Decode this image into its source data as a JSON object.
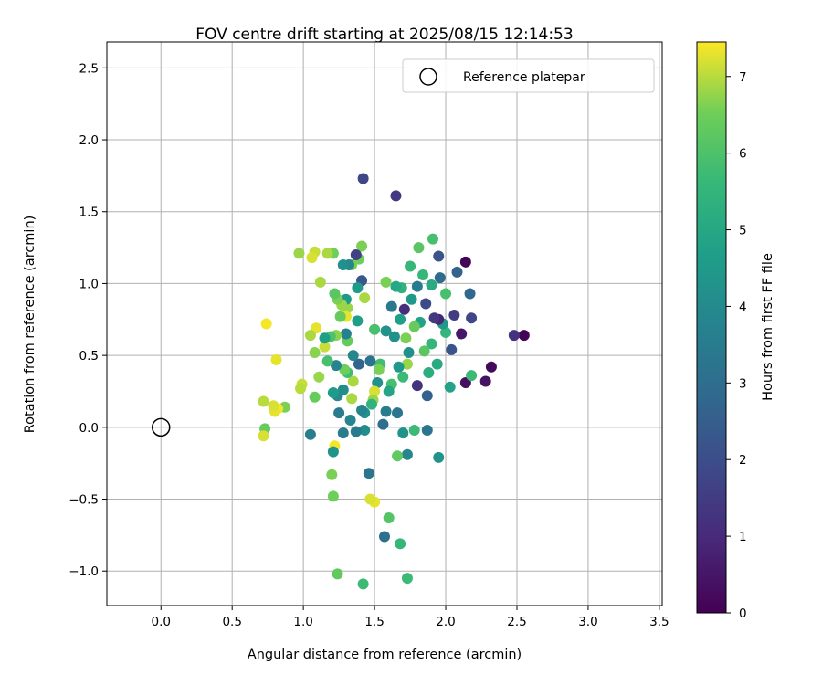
{
  "chart_data": {
    "type": "scatter",
    "title": "FOV centre drift starting at 2025/08/15 12:14:53",
    "xlabel": "Angular distance from reference (arcmin)",
    "ylabel": "Rotation from reference (arcmin)",
    "xlim": [
      -0.38,
      3.52
    ],
    "ylim": [
      -1.24,
      2.68
    ],
    "xticks": [
      "0.0",
      "0.5",
      "1.0",
      "1.5",
      "2.0",
      "2.5",
      "3.0",
      "3.5"
    ],
    "yticks": [
      "−1.0",
      "−0.5",
      "0.0",
      "0.5",
      "1.0",
      "1.5",
      "2.0",
      "2.5"
    ],
    "grid": true,
    "legend": {
      "position": "top-right",
      "label": "Reference platepar"
    },
    "reference_point": {
      "x": 0.0,
      "y": 0.0
    },
    "colorbar": {
      "label": "Hours from first FF file",
      "colormap": "viridis",
      "range": [
        0,
        7.45
      ],
      "ticks": [
        "0",
        "1",
        "2",
        "3",
        "4",
        "5",
        "6",
        "7"
      ]
    },
    "series": [
      {
        "x": 2.55,
        "y": 0.64,
        "c": 0.1
      },
      {
        "x": 2.48,
        "y": 0.64,
        "c": 1.2
      },
      {
        "x": 2.32,
        "y": 0.42,
        "c": 0.2
      },
      {
        "x": 2.28,
        "y": 0.32,
        "c": 0.4
      },
      {
        "x": 2.14,
        "y": 1.15,
        "c": 0.1
      },
      {
        "x": 2.14,
        "y": 0.31,
        "c": 0.3
      },
      {
        "x": 2.17,
        "y": 0.93,
        "c": 2.8
      },
      {
        "x": 2.18,
        "y": 0.76,
        "c": 1.8
      },
      {
        "x": 2.18,
        "y": 0.36,
        "c": 5.7
      },
      {
        "x": 2.11,
        "y": 0.65,
        "c": 0.5
      },
      {
        "x": 2.08,
        "y": 1.08,
        "c": 2.6
      },
      {
        "x": 2.06,
        "y": 0.78,
        "c": 1.5
      },
      {
        "x": 2.04,
        "y": 0.54,
        "c": 2.2
      },
      {
        "x": 2.03,
        "y": 0.28,
        "c": 4.8
      },
      {
        "x": 2.0,
        "y": 0.66,
        "c": 5.5
      },
      {
        "x": 2.0,
        "y": 0.93,
        "c": 5.9
      },
      {
        "x": 1.98,
        "y": 0.72,
        "c": 4.5
      },
      {
        "x": 1.96,
        "y": 1.04,
        "c": 2.9
      },
      {
        "x": 1.95,
        "y": 1.19,
        "c": 2.2
      },
      {
        "x": 1.95,
        "y": 0.75,
        "c": 0.9
      },
      {
        "x": 1.95,
        "y": -0.21,
        "c": 4.3
      },
      {
        "x": 1.94,
        "y": 0.44,
        "c": 5.1
      },
      {
        "x": 1.92,
        "y": 0.76,
        "c": 1.4
      },
      {
        "x": 1.91,
        "y": 1.31,
        "c": 5.9
      },
      {
        "x": 1.9,
        "y": 0.99,
        "c": 5.1
      },
      {
        "x": 1.9,
        "y": 0.58,
        "c": 5.5
      },
      {
        "x": 1.88,
        "y": 0.38,
        "c": 5.2
      },
      {
        "x": 1.87,
        "y": 0.22,
        "c": 2.6
      },
      {
        "x": 1.87,
        "y": -0.02,
        "c": 3.3
      },
      {
        "x": 1.86,
        "y": 0.86,
        "c": 1.9
      },
      {
        "x": 1.85,
        "y": 0.53,
        "c": 6.2
      },
      {
        "x": 1.84,
        "y": 1.06,
        "c": 5.6
      },
      {
        "x": 1.82,
        "y": 0.73,
        "c": 4.8
      },
      {
        "x": 1.81,
        "y": 1.25,
        "c": 6.2
      },
      {
        "x": 1.8,
        "y": 0.29,
        "c": 1.2
      },
      {
        "x": 1.8,
        "y": 0.98,
        "c": 3.5
      },
      {
        "x": 1.78,
        "y": 0.7,
        "c": 6.4
      },
      {
        "x": 1.78,
        "y": -0.02,
        "c": 5.7
      },
      {
        "x": 1.76,
        "y": 0.89,
        "c": 4.5
      },
      {
        "x": 1.75,
        "y": 1.12,
        "c": 5.6
      },
      {
        "x": 1.74,
        "y": 0.52,
        "c": 4.2
      },
      {
        "x": 1.73,
        "y": 0.44,
        "c": 6.8
      },
      {
        "x": 1.73,
        "y": -0.19,
        "c": 3.9
      },
      {
        "x": 1.73,
        "y": -1.05,
        "c": 5.7
      },
      {
        "x": 1.72,
        "y": 0.62,
        "c": 6.6
      },
      {
        "x": 1.71,
        "y": 0.82,
        "c": 1.1
      },
      {
        "x": 1.7,
        "y": 0.35,
        "c": 5.7
      },
      {
        "x": 1.7,
        "y": -0.04,
        "c": 4.3
      },
      {
        "x": 1.69,
        "y": 0.97,
        "c": 5.4
      },
      {
        "x": 1.68,
        "y": 0.75,
        "c": 4.7
      },
      {
        "x": 1.67,
        "y": 0.42,
        "c": 4.5
      },
      {
        "x": 1.66,
        "y": 0.1,
        "c": 3.3
      },
      {
        "x": 1.66,
        "y": -0.2,
        "c": 6.3
      },
      {
        "x": 1.68,
        "y": -0.81,
        "c": 5.6
      },
      {
        "x": 1.65,
        "y": 1.61,
        "c": 1.4
      },
      {
        "x": 1.65,
        "y": 0.98,
        "c": 5.0
      },
      {
        "x": 1.64,
        "y": 0.63,
        "c": 4.2
      },
      {
        "x": 1.62,
        "y": 0.84,
        "c": 3.4
      },
      {
        "x": 1.62,
        "y": 0.3,
        "c": 5.9
      },
      {
        "x": 1.6,
        "y": 0.25,
        "c": 4.9
      },
      {
        "x": 1.58,
        "y": 1.01,
        "c": 6.6
      },
      {
        "x": 1.58,
        "y": 0.67,
        "c": 4.3
      },
      {
        "x": 1.58,
        "y": 0.11,
        "c": 3.5
      },
      {
        "x": 1.57,
        "y": -0.76,
        "c": 3.1
      },
      {
        "x": 1.56,
        "y": 0.02,
        "c": 3.0
      },
      {
        "x": 1.6,
        "y": -0.63,
        "c": 6.1
      },
      {
        "x": 1.54,
        "y": 0.44,
        "c": 5.8
      },
      {
        "x": 1.53,
        "y": 0.4,
        "c": 6.6
      },
      {
        "x": 1.52,
        "y": 0.31,
        "c": 4.2
      },
      {
        "x": 1.5,
        "y": 0.68,
        "c": 5.9
      },
      {
        "x": 1.5,
        "y": 0.25,
        "c": 7.2
      },
      {
        "x": 1.49,
        "y": 0.19,
        "c": 6.8
      },
      {
        "x": 1.48,
        "y": 0.16,
        "c": 5.4
      },
      {
        "x": 1.47,
        "y": 0.46,
        "c": 3.2
      },
      {
        "x": 1.5,
        "y": -0.52,
        "c": 7.3
      },
      {
        "x": 1.47,
        "y": -0.5,
        "c": 7.2
      },
      {
        "x": 1.46,
        "y": -0.32,
        "c": 3.3
      },
      {
        "x": 1.43,
        "y": 0.9,
        "c": 6.9
      },
      {
        "x": 1.43,
        "y": 0.1,
        "c": 4.2
      },
      {
        "x": 1.43,
        "y": -0.02,
        "c": 4.1
      },
      {
        "x": 1.42,
        "y": 1.73,
        "c": 1.8
      },
      {
        "x": 1.41,
        "y": 1.26,
        "c": 6.6
      },
      {
        "x": 1.41,
        "y": 1.02,
        "c": 2.3
      },
      {
        "x": 1.41,
        "y": 0.12,
        "c": 3.8
      },
      {
        "x": 1.42,
        "y": -1.09,
        "c": 5.7
      },
      {
        "x": 1.39,
        "y": 1.17,
        "c": 6.5
      },
      {
        "x": 1.39,
        "y": 0.44,
        "c": 2.7
      },
      {
        "x": 1.38,
        "y": 0.97,
        "c": 4.6
      },
      {
        "x": 1.38,
        "y": 0.74,
        "c": 4.7
      },
      {
        "x": 1.37,
        "y": 1.2,
        "c": 1.6
      },
      {
        "x": 1.37,
        "y": -0.03,
        "c": 3.5
      },
      {
        "x": 1.35,
        "y": 0.32,
        "c": 6.9
      },
      {
        "x": 1.35,
        "y": 0.5,
        "c": 3.9
      },
      {
        "x": 1.34,
        "y": 1.13,
        "c": 6.6
      },
      {
        "x": 1.34,
        "y": 0.2,
        "c": 6.9
      },
      {
        "x": 1.33,
        "y": 0.05,
        "c": 3.9
      },
      {
        "x": 1.32,
        "y": 1.13,
        "c": 3.9
      },
      {
        "x": 1.31,
        "y": 0.83,
        "c": 6.8
      },
      {
        "x": 1.31,
        "y": 0.6,
        "c": 6.4
      },
      {
        "x": 1.31,
        "y": 0.38,
        "c": 5.8
      },
      {
        "x": 1.3,
        "y": 0.77,
        "c": 7.3
      },
      {
        "x": 1.3,
        "y": 0.89,
        "c": 4.5
      },
      {
        "x": 1.3,
        "y": 0.65,
        "c": 3.7
      },
      {
        "x": 1.29,
        "y": 0.4,
        "c": 6.5
      },
      {
        "x": 1.28,
        "y": 1.13,
        "c": 4.2
      },
      {
        "x": 1.28,
        "y": 0.26,
        "c": 4.1
      },
      {
        "x": 1.28,
        "y": -0.04,
        "c": 3.5
      },
      {
        "x": 1.27,
        "y": 0.85,
        "c": 6.8
      },
      {
        "x": 1.26,
        "y": 0.77,
        "c": 6.4
      },
      {
        "x": 1.25,
        "y": 0.1,
        "c": 3.5
      },
      {
        "x": 1.24,
        "y": 0.89,
        "c": 6.6
      },
      {
        "x": 1.24,
        "y": 0.22,
        "c": 4.0
      },
      {
        "x": 1.23,
        "y": 0.64,
        "c": 6.7
      },
      {
        "x": 1.23,
        "y": 0.43,
        "c": 3.8
      },
      {
        "x": 1.22,
        "y": 0.93,
        "c": 6.2
      },
      {
        "x": 1.22,
        "y": -0.13,
        "c": 7.4
      },
      {
        "x": 1.24,
        "y": -1.02,
        "c": 6.3
      },
      {
        "x": 1.21,
        "y": 1.21,
        "c": 6.5
      },
      {
        "x": 1.21,
        "y": 0.24,
        "c": 4.6
      },
      {
        "x": 1.21,
        "y": -0.17,
        "c": 4.3
      },
      {
        "x": 1.21,
        "y": -0.48,
        "c": 6.5
      },
      {
        "x": 1.2,
        "y": -0.33,
        "c": 6.6
      },
      {
        "x": 1.19,
        "y": 0.63,
        "c": 6.0
      },
      {
        "x": 1.17,
        "y": 1.21,
        "c": 6.9
      },
      {
        "x": 1.17,
        "y": 0.46,
        "c": 5.9
      },
      {
        "x": 1.15,
        "y": 0.56,
        "c": 7.1
      },
      {
        "x": 1.15,
        "y": 0.62,
        "c": 4.7
      },
      {
        "x": 1.12,
        "y": 1.01,
        "c": 6.9
      },
      {
        "x": 1.11,
        "y": 0.35,
        "c": 6.8
      },
      {
        "x": 1.09,
        "y": 0.69,
        "c": 7.3
      },
      {
        "x": 1.08,
        "y": 1.22,
        "c": 7.1
      },
      {
        "x": 1.08,
        "y": 0.52,
        "c": 6.7
      },
      {
        "x": 1.08,
        "y": 0.21,
        "c": 6.4
      },
      {
        "x": 1.06,
        "y": 1.18,
        "c": 7.2
      },
      {
        "x": 1.05,
        "y": 0.64,
        "c": 6.9
      },
      {
        "x": 1.05,
        "y": -0.05,
        "c": 3.6
      },
      {
        "x": 0.99,
        "y": 0.3,
        "c": 7.1
      },
      {
        "x": 0.98,
        "y": 0.27,
        "c": 7.0
      },
      {
        "x": 0.97,
        "y": 1.21,
        "c": 6.8
      },
      {
        "x": 0.87,
        "y": 0.14,
        "c": 6.6
      },
      {
        "x": 0.82,
        "y": 0.13,
        "c": 7.4
      },
      {
        "x": 0.81,
        "y": 0.47,
        "c": 7.3
      },
      {
        "x": 0.8,
        "y": 0.11,
        "c": 7.3
      },
      {
        "x": 0.79,
        "y": 0.15,
        "c": 7.2
      },
      {
        "x": 0.74,
        "y": 0.72,
        "c": 7.4
      },
      {
        "x": 0.73,
        "y": -0.01,
        "c": 6.4
      },
      {
        "x": 0.72,
        "y": -0.06,
        "c": 7.2
      },
      {
        "x": 0.72,
        "y": 0.18,
        "c": 7.0
      }
    ]
  }
}
